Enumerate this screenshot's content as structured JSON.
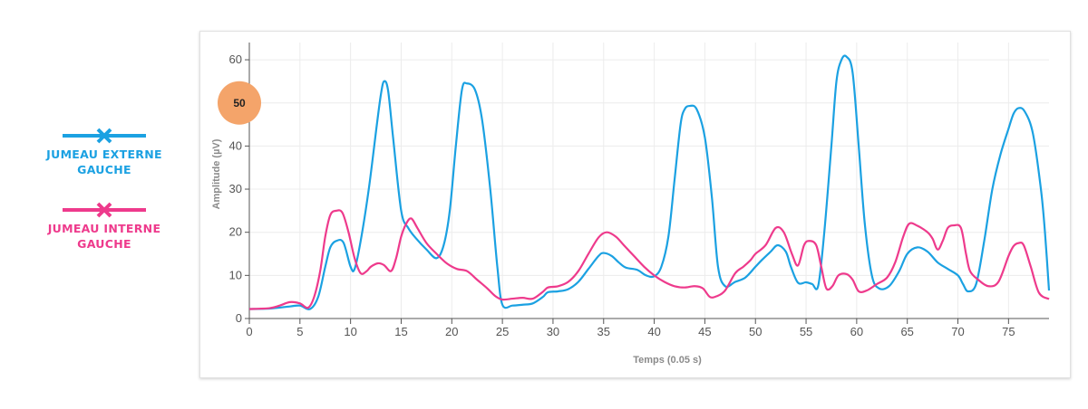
{
  "legend": {
    "items": [
      {
        "label": "JUMEAU EXTERNE\nGAUCHE",
        "color": "#1ba1e2",
        "icon": "cross-line-marker"
      },
      {
        "label": "JUMEAU INTERNE\nGAUCHE",
        "color": "#ee3a8c",
        "icon": "cross-line-marker"
      }
    ]
  },
  "chart_data": {
    "type": "line",
    "title": "",
    "xlabel": "Temps (0.05 s)",
    "ylabel": "Amplitude (µV)",
    "xlim": [
      0,
      79
    ],
    "ylim": [
      0,
      64
    ],
    "x_ticks": [
      0,
      5,
      10,
      15,
      20,
      25,
      30,
      35,
      40,
      45,
      50,
      55,
      60,
      65,
      70,
      75
    ],
    "y_ticks": [
      0,
      10,
      20,
      30,
      40,
      50,
      60
    ],
    "grid": true,
    "highlight_badge": {
      "label": "50",
      "y": 50,
      "color": "#f4a46a"
    },
    "series": [
      {
        "name": "JUMEAU EXTERNE GAUCHE",
        "color": "#1ba1e2",
        "points": [
          [
            0,
            2.2
          ],
          [
            2,
            2.3
          ],
          [
            4,
            2.8
          ],
          [
            5,
            3
          ],
          [
            6,
            2.2
          ],
          [
            6.8,
            5
          ],
          [
            7.5,
            12
          ],
          [
            8,
            16.5
          ],
          [
            8.6,
            18
          ],
          [
            9.3,
            17.6
          ],
          [
            10,
            12
          ],
          [
            10.4,
            11.5
          ],
          [
            11,
            18
          ],
          [
            11.8,
            30
          ],
          [
            12.6,
            45
          ],
          [
            13,
            52
          ],
          [
            13.3,
            55
          ],
          [
            13.7,
            53
          ],
          [
            14.2,
            42
          ],
          [
            15,
            25
          ],
          [
            15.7,
            21
          ],
          [
            16.5,
            18.5
          ],
          [
            17.5,
            16
          ],
          [
            18.5,
            14
          ],
          [
            19.2,
            17
          ],
          [
            19.8,
            25
          ],
          [
            20.4,
            40
          ],
          [
            21,
            53
          ],
          [
            21.5,
            54.5
          ],
          [
            22.3,
            53
          ],
          [
            23,
            46
          ],
          [
            23.8,
            30
          ],
          [
            24.5,
            12
          ],
          [
            25,
            3.2
          ],
          [
            26,
            3
          ],
          [
            27,
            3.2
          ],
          [
            28,
            3.5
          ],
          [
            29,
            5
          ],
          [
            29.5,
            6.1
          ],
          [
            30.5,
            6.3
          ],
          [
            31.5,
            6.8
          ],
          [
            32.5,
            8.5
          ],
          [
            33.5,
            11.5
          ],
          [
            34.5,
            14.5
          ],
          [
            35,
            15.2
          ],
          [
            35.8,
            14.5
          ],
          [
            36.5,
            13
          ],
          [
            37.2,
            11.8
          ],
          [
            38.3,
            11.3
          ],
          [
            39.2,
            10
          ],
          [
            40,
            9.8
          ],
          [
            40.7,
            12
          ],
          [
            41.4,
            19
          ],
          [
            42,
            32
          ],
          [
            42.6,
            45
          ],
          [
            43,
            48.5
          ],
          [
            43.5,
            49.3
          ],
          [
            44.2,
            48.5
          ],
          [
            45,
            42
          ],
          [
            45.7,
            28
          ],
          [
            46.3,
            12
          ],
          [
            47,
            7.5
          ],
          [
            48,
            8.5
          ],
          [
            49,
            9.5
          ],
          [
            50,
            12
          ],
          [
            50.6,
            13.5
          ],
          [
            51.5,
            15.5
          ],
          [
            52.2,
            17
          ],
          [
            53,
            15.5
          ],
          [
            53.5,
            12
          ],
          [
            54.2,
            8.3
          ],
          [
            55,
            8.4
          ],
          [
            55.6,
            8
          ],
          [
            56.2,
            7.6
          ],
          [
            56.8,
            20
          ],
          [
            57.5,
            40
          ],
          [
            58,
            55
          ],
          [
            58.5,
            60
          ],
          [
            59,
            60.7
          ],
          [
            59.6,
            57
          ],
          [
            60.2,
            40
          ],
          [
            60.8,
            22
          ],
          [
            61.5,
            10
          ],
          [
            62.2,
            7
          ],
          [
            63.2,
            7.5
          ],
          [
            64.2,
            11
          ],
          [
            65,
            15
          ],
          [
            66,
            16.5
          ],
          [
            67,
            15.5
          ],
          [
            68,
            13
          ],
          [
            69,
            11.5
          ],
          [
            70,
            10
          ],
          [
            70.5,
            8
          ],
          [
            71,
            6.3
          ],
          [
            71.8,
            8
          ],
          [
            72.6,
            18
          ],
          [
            73.4,
            30
          ],
          [
            74.2,
            38
          ],
          [
            75,
            44
          ],
          [
            75.5,
            47.5
          ],
          [
            76,
            48.8
          ],
          [
            76.6,
            48
          ],
          [
            77.4,
            43
          ],
          [
            78.2,
            30
          ],
          [
            78.6,
            20
          ],
          [
            79,
            6.5
          ]
        ]
      },
      {
        "name": "JUMEAU INTERNE GAUCHE",
        "color": "#ee3a8c",
        "points": [
          [
            0,
            2.2
          ],
          [
            2,
            2.4
          ],
          [
            3,
            3
          ],
          [
            4,
            3.8
          ],
          [
            5,
            3.5
          ],
          [
            5.8,
            2.5
          ],
          [
            6.4,
            5
          ],
          [
            7,
            11
          ],
          [
            7.5,
            19
          ],
          [
            8,
            24
          ],
          [
            8.6,
            25
          ],
          [
            9.2,
            24.5
          ],
          [
            9.8,
            20
          ],
          [
            10.4,
            14
          ],
          [
            11,
            10.5
          ],
          [
            11.6,
            11
          ],
          [
            12,
            12
          ],
          [
            12.7,
            12.8
          ],
          [
            13.3,
            12.4
          ],
          [
            14,
            11
          ],
          [
            14.5,
            14
          ],
          [
            15,
            19
          ],
          [
            15.5,
            22
          ],
          [
            16,
            23.2
          ],
          [
            16.6,
            21
          ],
          [
            17.5,
            17.5
          ],
          [
            18.5,
            15
          ],
          [
            19.5,
            12.8
          ],
          [
            20.5,
            11.5
          ],
          [
            21.5,
            11
          ],
          [
            22.5,
            9
          ],
          [
            23.5,
            7
          ],
          [
            24.3,
            5.2
          ],
          [
            25,
            4.4
          ],
          [
            26,
            4.6
          ],
          [
            27,
            4.8
          ],
          [
            28,
            4.6
          ],
          [
            29,
            6.2
          ],
          [
            29.5,
            7.2
          ],
          [
            30.5,
            7.5
          ],
          [
            31.5,
            8.5
          ],
          [
            32.5,
            11
          ],
          [
            33.5,
            15
          ],
          [
            34.5,
            18.8
          ],
          [
            35.3,
            20
          ],
          [
            36.2,
            19
          ],
          [
            37,
            17
          ],
          [
            38,
            14.5
          ],
          [
            39,
            12
          ],
          [
            40,
            10
          ],
          [
            41,
            8.5
          ],
          [
            42,
            7.5
          ],
          [
            43,
            7.2
          ],
          [
            44,
            7.5
          ],
          [
            44.8,
            7
          ],
          [
            45.5,
            5
          ],
          [
            46.2,
            5.2
          ],
          [
            47,
            6.5
          ],
          [
            48,
            10.5
          ],
          [
            48.8,
            12
          ],
          [
            49.5,
            13.5
          ],
          [
            50,
            15
          ],
          [
            51,
            17
          ],
          [
            52,
            21
          ],
          [
            52.8,
            20
          ],
          [
            53.6,
            15
          ],
          [
            54.2,
            12.3
          ],
          [
            54.8,
            17
          ],
          [
            55.3,
            18
          ],
          [
            56,
            17
          ],
          [
            56.5,
            12
          ],
          [
            57,
            7
          ],
          [
            57.6,
            7.5
          ],
          [
            58.2,
            10
          ],
          [
            59,
            10.3
          ],
          [
            59.6,
            9
          ],
          [
            60.2,
            6.3
          ],
          [
            61,
            6.5
          ],
          [
            62,
            8
          ],
          [
            63,
            9.5
          ],
          [
            63.8,
            13
          ],
          [
            64.6,
            19
          ],
          [
            65.2,
            22
          ],
          [
            66,
            21.5
          ],
          [
            67,
            20
          ],
          [
            67.5,
            18.5
          ],
          [
            68,
            16
          ],
          [
            68.5,
            18
          ],
          [
            69,
            21
          ],
          [
            69.6,
            21.6
          ],
          [
            70.3,
            21
          ],
          [
            70.8,
            15
          ],
          [
            71.2,
            11
          ],
          [
            72,
            9
          ],
          [
            73,
            7.5
          ],
          [
            74,
            8.5
          ],
          [
            75,
            14.5
          ],
          [
            75.5,
            16.8
          ],
          [
            76,
            17.5
          ],
          [
            76.5,
            17
          ],
          [
            77.2,
            12
          ],
          [
            78,
            6
          ],
          [
            79,
            4.5
          ]
        ]
      }
    ]
  }
}
